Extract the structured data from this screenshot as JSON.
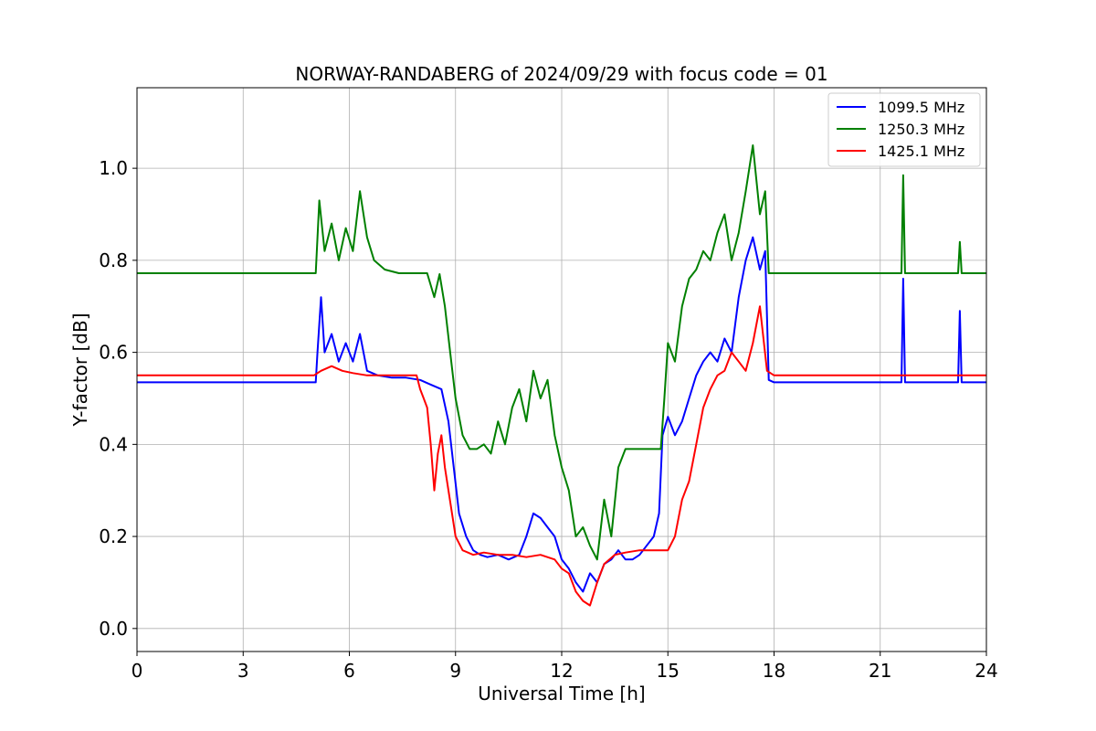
{
  "chart_data": {
    "type": "line",
    "title": "NORWAY-RANDABERG of 2024/09/29 with focus code = 01",
    "xlabel": "Universal Time [h]",
    "ylabel": "Y-factor [dB]",
    "xlim": [
      0,
      24
    ],
    "ylim": [
      -0.05,
      1.175
    ],
    "xticks": [
      0,
      3,
      6,
      9,
      12,
      15,
      18,
      21,
      24
    ],
    "yticks": [
      0.0,
      0.2,
      0.4,
      0.6,
      0.8,
      1.0
    ],
    "ytick_labels": [
      "0.0",
      "0.2",
      "0.4",
      "0.6",
      "0.8",
      "1.0"
    ],
    "grid": true,
    "legend_position": "top-right",
    "series": [
      {
        "name": "1099.5 MHz",
        "color": "#0000ff",
        "x": [
          0,
          1,
          2,
          3,
          4,
          4.8,
          5.05,
          5.1,
          5.2,
          5.3,
          5.5,
          5.7,
          5.9,
          6.1,
          6.3,
          6.5,
          6.8,
          7.2,
          7.6,
          8.0,
          8.3,
          8.6,
          8.8,
          8.95,
          9.1,
          9.3,
          9.5,
          9.7,
          9.9,
          10.2,
          10.5,
          10.8,
          11.0,
          11.2,
          11.4,
          11.6,
          11.8,
          12.0,
          12.2,
          12.4,
          12.6,
          12.8,
          13.0,
          13.2,
          13.4,
          13.6,
          13.8,
          14.0,
          14.2,
          14.4,
          14.6,
          14.75,
          14.85,
          15.0,
          15.2,
          15.4,
          15.6,
          15.8,
          16.0,
          16.2,
          16.4,
          16.6,
          16.8,
          17.0,
          17.2,
          17.4,
          17.6,
          17.75,
          17.85,
          18.0,
          19.0,
          20.0,
          21.0,
          21.6,
          21.65,
          21.7,
          22.5,
          23.2,
          23.25,
          23.3,
          24.0
        ],
        "y": [
          0.535,
          0.535,
          0.535,
          0.535,
          0.535,
          0.535,
          0.535,
          0.6,
          0.72,
          0.6,
          0.64,
          0.58,
          0.62,
          0.58,
          0.64,
          0.56,
          0.55,
          0.545,
          0.545,
          0.54,
          0.53,
          0.52,
          0.45,
          0.35,
          0.25,
          0.2,
          0.17,
          0.16,
          0.155,
          0.16,
          0.15,
          0.16,
          0.2,
          0.25,
          0.24,
          0.22,
          0.2,
          0.15,
          0.13,
          0.1,
          0.08,
          0.12,
          0.1,
          0.14,
          0.15,
          0.17,
          0.15,
          0.15,
          0.16,
          0.18,
          0.2,
          0.25,
          0.42,
          0.46,
          0.42,
          0.45,
          0.5,
          0.55,
          0.58,
          0.6,
          0.58,
          0.63,
          0.6,
          0.72,
          0.8,
          0.85,
          0.78,
          0.82,
          0.54,
          0.535,
          0.535,
          0.535,
          0.535,
          0.535,
          0.76,
          0.535,
          0.535,
          0.535,
          0.69,
          0.535,
          0.535
        ]
      },
      {
        "name": "1250.3 MHz",
        "color": "#008000",
        "x": [
          0,
          1,
          2,
          3,
          4,
          4.8,
          5.05,
          5.15,
          5.3,
          5.5,
          5.7,
          5.9,
          6.1,
          6.3,
          6.5,
          6.7,
          7.0,
          7.4,
          7.8,
          8.2,
          8.4,
          8.55,
          8.7,
          8.85,
          9.0,
          9.2,
          9.4,
          9.6,
          9.8,
          10.0,
          10.2,
          10.4,
          10.6,
          10.8,
          11.0,
          11.2,
          11.4,
          11.6,
          11.8,
          12.0,
          12.2,
          12.4,
          12.6,
          12.8,
          13.0,
          13.2,
          13.4,
          13.6,
          13.8,
          14.0,
          14.2,
          14.4,
          14.6,
          14.8,
          14.9,
          15.0,
          15.2,
          15.4,
          15.6,
          15.8,
          16.0,
          16.2,
          16.4,
          16.6,
          16.8,
          17.0,
          17.2,
          17.4,
          17.6,
          17.75,
          17.85,
          18.0,
          19.0,
          20.0,
          21.0,
          21.6,
          21.65,
          21.7,
          22.5,
          23.2,
          23.25,
          23.3,
          24.0
        ],
        "y": [
          0.772,
          0.772,
          0.772,
          0.772,
          0.772,
          0.772,
          0.772,
          0.93,
          0.82,
          0.88,
          0.8,
          0.87,
          0.82,
          0.95,
          0.85,
          0.8,
          0.78,
          0.772,
          0.772,
          0.772,
          0.72,
          0.77,
          0.7,
          0.6,
          0.5,
          0.42,
          0.39,
          0.39,
          0.4,
          0.38,
          0.45,
          0.4,
          0.48,
          0.52,
          0.45,
          0.56,
          0.5,
          0.54,
          0.42,
          0.35,
          0.3,
          0.2,
          0.22,
          0.18,
          0.15,
          0.28,
          0.2,
          0.35,
          0.39,
          0.39,
          0.39,
          0.39,
          0.39,
          0.39,
          0.5,
          0.62,
          0.58,
          0.7,
          0.76,
          0.78,
          0.82,
          0.8,
          0.86,
          0.9,
          0.8,
          0.86,
          0.95,
          1.05,
          0.9,
          0.95,
          0.772,
          0.772,
          0.772,
          0.772,
          0.772,
          0.772,
          0.985,
          0.772,
          0.772,
          0.772,
          0.84,
          0.772,
          0.772
        ]
      },
      {
        "name": "1425.1 MHz",
        "color": "#ff0000",
        "x": [
          0,
          1,
          2,
          3,
          4,
          5.0,
          5.2,
          5.5,
          5.8,
          6.1,
          6.5,
          7.0,
          7.5,
          7.9,
          8.0,
          8.1,
          8.2,
          8.3,
          8.4,
          8.5,
          8.6,
          8.7,
          8.8,
          8.9,
          9.0,
          9.2,
          9.5,
          9.8,
          10.2,
          10.6,
          11.0,
          11.4,
          11.8,
          12.0,
          12.2,
          12.4,
          12.6,
          12.8,
          13.0,
          13.2,
          13.5,
          13.8,
          14.2,
          14.6,
          15.0,
          15.2,
          15.4,
          15.6,
          15.8,
          16.0,
          16.2,
          16.4,
          16.6,
          16.8,
          17.0,
          17.2,
          17.4,
          17.6,
          17.8,
          18.0,
          19.0,
          20.0,
          21.0,
          22.0,
          23.0,
          24.0
        ],
        "y": [
          0.55,
          0.55,
          0.55,
          0.55,
          0.55,
          0.55,
          0.56,
          0.57,
          0.56,
          0.555,
          0.55,
          0.55,
          0.55,
          0.55,
          0.52,
          0.5,
          0.48,
          0.4,
          0.3,
          0.38,
          0.42,
          0.35,
          0.3,
          0.25,
          0.2,
          0.17,
          0.16,
          0.165,
          0.16,
          0.16,
          0.155,
          0.16,
          0.15,
          0.13,
          0.12,
          0.08,
          0.06,
          0.05,
          0.1,
          0.14,
          0.16,
          0.165,
          0.17,
          0.17,
          0.17,
          0.2,
          0.28,
          0.32,
          0.4,
          0.48,
          0.52,
          0.55,
          0.56,
          0.6,
          0.58,
          0.56,
          0.62,
          0.7,
          0.56,
          0.55,
          0.55,
          0.55,
          0.55,
          0.55,
          0.55,
          0.55
        ]
      }
    ]
  }
}
